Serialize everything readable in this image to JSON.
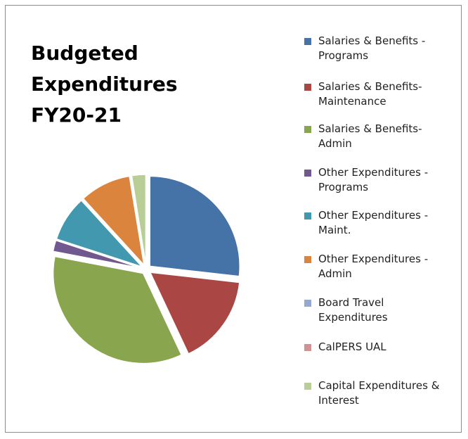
{
  "chart_data": {
    "type": "pie",
    "title_lines": [
      "Budgeted",
      "Expenditures",
      "FY20-21"
    ],
    "legend_position": "right",
    "categories": [
      "Salaries & Benefits - Programs",
      "Salaries & Benefits-Maintenance",
      "Salaries & Benefits-Admin",
      "Other Expenditures - Programs",
      "Other Expenditures - Maint.",
      "Other Expenditures - Admin",
      "Board Travel Expenditures",
      "CalPERS UAL",
      "Capital Expenditures & Interest"
    ],
    "legend_lines": [
      [
        "Salaries & Benefits -",
        "Programs"
      ],
      [
        "Salaries & Benefits-",
        "Maintenance"
      ],
      [
        "Salaries & Benefits-",
        "Admin"
      ],
      [
        "Other Expenditures -",
        "Programs"
      ],
      [
        "Other Expenditures -",
        "Maint."
      ],
      [
        "Other Expenditures -",
        "Admin"
      ],
      [
        "Board Travel",
        "Expenditures"
      ],
      [
        "CalPERS UAL"
      ],
      [
        "Capital Expenditures &",
        "Interest"
      ]
    ],
    "values": [
      26.8,
      16.2,
      35.0,
      2.0,
      8.2,
      9.2,
      0.1,
      0.0,
      2.5
    ],
    "unit": "percent of total (estimated)",
    "colors": [
      "#4572a7",
      "#aa4643",
      "#89a54e",
      "#71588f",
      "#4198af",
      "#db843d",
      "#93a9cf",
      "#d19392",
      "#b9cd96"
    ],
    "exploded": true
  }
}
